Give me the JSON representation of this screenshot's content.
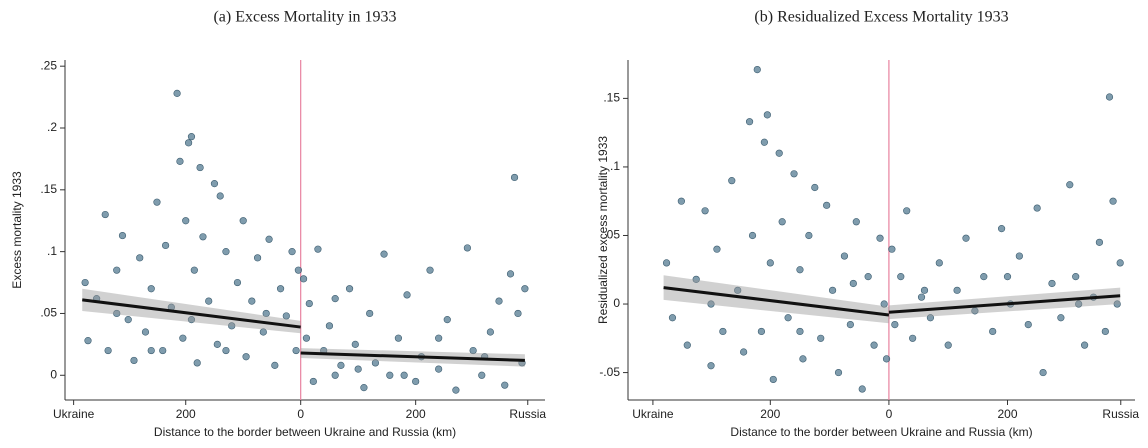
{
  "chart_data": [
    {
      "type": "scatter",
      "title": "(a) Excess Mortality in 1933",
      "y_label": "Excess mortality 1933",
      "x_label": "Distance to the border between Ukraine and Russia (km)",
      "xlim": [
        -410,
        425
      ],
      "ylim": [
        -0.02,
        0.255
      ],
      "xticks": [
        {
          "value": -395,
          "label": "Ukraine"
        },
        {
          "value": -200,
          "label": "200"
        },
        0,
        200,
        {
          "value": 395,
          "label": "Russia"
        }
      ],
      "yticks": [
        0,
        {
          "value": 0.05,
          "label": ".05"
        },
        {
          "value": 0.1,
          "label": ".1"
        },
        {
          "value": 0.15,
          "label": ".15"
        },
        {
          "value": 0.2,
          "label": ".2"
        },
        {
          "value": 0.25,
          "label": ".25"
        }
      ],
      "color": "#5f8399",
      "cutoff": 0,
      "cutoff_color": "#e8829f",
      "x": [
        -375,
        -370,
        -355,
        -340,
        -335,
        -320,
        -310,
        -300,
        -290,
        -280,
        -270,
        -260,
        -250,
        -240,
        -235,
        -225,
        -215,
        -210,
        -205,
        -200,
        -195,
        -190,
        -185,
        -180,
        -175,
        -170,
        -160,
        -150,
        -145,
        -140,
        -130,
        -120,
        -110,
        -100,
        -95,
        -85,
        -75,
        -65,
        -55,
        -45,
        -35,
        -25,
        -15,
        -8,
        -4,
        -190,
        -260,
        -320,
        -130,
        -60,
        5,
        10,
        15,
        22,
        30,
        40,
        50,
        60,
        70,
        85,
        95,
        110,
        120,
        130,
        145,
        155,
        170,
        185,
        200,
        210,
        225,
        240,
        255,
        270,
        290,
        300,
        315,
        330,
        345,
        355,
        365,
        372,
        378,
        385,
        390,
        60,
        180,
        240,
        320,
        100
      ],
      "values": [
        0.075,
        0.028,
        0.062,
        0.13,
        0.02,
        0.085,
        0.113,
        0.045,
        0.012,
        0.095,
        0.035,
        0.07,
        0.14,
        0.02,
        0.105,
        0.055,
        0.228,
        0.173,
        0.03,
        0.125,
        0.188,
        0.193,
        0.085,
        0.01,
        0.168,
        0.112,
        0.06,
        0.155,
        0.025,
        0.145,
        0.1,
        0.04,
        0.075,
        0.125,
        0.015,
        0.06,
        0.095,
        0.035,
        0.11,
        0.008,
        0.07,
        0.048,
        0.1,
        0.02,
        0.085,
        0.045,
        0.02,
        0.05,
        0.02,
        0.05,
        0.078,
        0.03,
        0.058,
        -0.005,
        0.102,
        0.02,
        0.04,
        0.0,
        0.008,
        0.07,
        0.025,
        -0.01,
        0.05,
        0.01,
        0.098,
        0.0,
        0.03,
        0.065,
        -0.005,
        0.015,
        0.085,
        0.005,
        0.045,
        -0.012,
        0.103,
        0.02,
        0.0,
        0.035,
        0.06,
        -0.008,
        0.082,
        0.16,
        0.05,
        0.01,
        0.07,
        0.062,
        0.0,
        0.03,
        0.015,
        0.005
      ],
      "fits": [
        {
          "x": [
            -380,
            0
          ],
          "values": [
            0.061,
            0.039
          ],
          "lower": [
            0.052,
            0.034
          ],
          "upper": [
            0.07,
            0.044
          ]
        },
        {
          "x": [
            0,
            390
          ],
          "values": [
            0.018,
            0.012
          ],
          "lower": [
            0.014,
            0.007
          ],
          "upper": [
            0.022,
            0.017
          ]
        }
      ]
    },
    {
      "type": "scatter",
      "title": "(b) Residualized Excess Mortality 1933",
      "y_label": "Residualized excess mortality 1933",
      "x_label": "Distance to the border between Ukraine and Russia (km)",
      "xlim": [
        -440,
        415
      ],
      "ylim": [
        -0.07,
        0.178
      ],
      "xticks": [
        {
          "value": -398,
          "label": "Ukraine"
        },
        {
          "value": -200,
          "label": "200"
        },
        0,
        200,
        {
          "value": 391,
          "label": "Russia"
        }
      ],
      "yticks": [
        {
          "value": -0.05,
          "label": "-.05"
        },
        0,
        {
          "value": 0.05,
          "label": ".05"
        },
        {
          "value": 0.1,
          "label": ".1"
        },
        {
          "value": 0.15,
          "label": ".15"
        }
      ],
      "color": "#5f8399",
      "cutoff": 0,
      "cutoff_color": "#e8829f",
      "x": [
        -375,
        -365,
        -350,
        -340,
        -325,
        -310,
        -300,
        -290,
        -280,
        -265,
        -255,
        -245,
        -235,
        -230,
        -222,
        -215,
        -210,
        -205,
        -200,
        -195,
        -185,
        -180,
        -170,
        -160,
        -150,
        -145,
        -135,
        -125,
        -115,
        -105,
        -95,
        -85,
        -75,
        -65,
        -55,
        -45,
        -35,
        -25,
        -15,
        -8,
        -4,
        -300,
        -150,
        -60,
        5,
        10,
        20,
        30,
        40,
        55,
        70,
        85,
        100,
        115,
        130,
        145,
        160,
        175,
        190,
        205,
        220,
        235,
        250,
        260,
        275,
        290,
        305,
        315,
        330,
        345,
        355,
        365,
        372,
        378,
        385,
        390,
        60,
        200,
        320
      ],
      "values": [
        0.03,
        -0.01,
        0.075,
        -0.03,
        0.018,
        0.068,
        -0.045,
        0.04,
        -0.02,
        0.09,
        0.01,
        -0.035,
        0.133,
        0.05,
        0.171,
        -0.02,
        0.118,
        0.138,
        0.03,
        -0.055,
        0.11,
        0.06,
        -0.01,
        0.095,
        0.025,
        -0.04,
        0.05,
        0.085,
        -0.025,
        0.072,
        0.01,
        -0.05,
        0.035,
        -0.015,
        0.06,
        -0.062,
        0.02,
        -0.03,
        0.048,
        0.0,
        -0.04,
        0.0,
        -0.02,
        0.015,
        0.04,
        -0.015,
        0.02,
        0.068,
        -0.025,
        0.005,
        -0.01,
        0.03,
        -0.03,
        0.01,
        0.048,
        -0.005,
        0.02,
        -0.02,
        0.055,
        0.0,
        0.035,
        -0.015,
        0.07,
        -0.05,
        0.015,
        -0.01,
        0.087,
        0.02,
        -0.03,
        0.005,
        0.045,
        -0.02,
        0.151,
        0.075,
        0.0,
        0.03,
        0.01,
        0.02,
        0.0
      ],
      "fits": [
        {
          "x": [
            -380,
            0
          ],
          "values": [
            0.012,
            -0.008
          ],
          "lower": [
            0.003,
            -0.014
          ],
          "upper": [
            0.021,
            -0.002
          ]
        },
        {
          "x": [
            0,
            390
          ],
          "values": [
            -0.006,
            0.006
          ],
          "lower": [
            -0.011,
            0.0
          ],
          "upper": [
            -0.001,
            0.012
          ]
        }
      ]
    }
  ]
}
